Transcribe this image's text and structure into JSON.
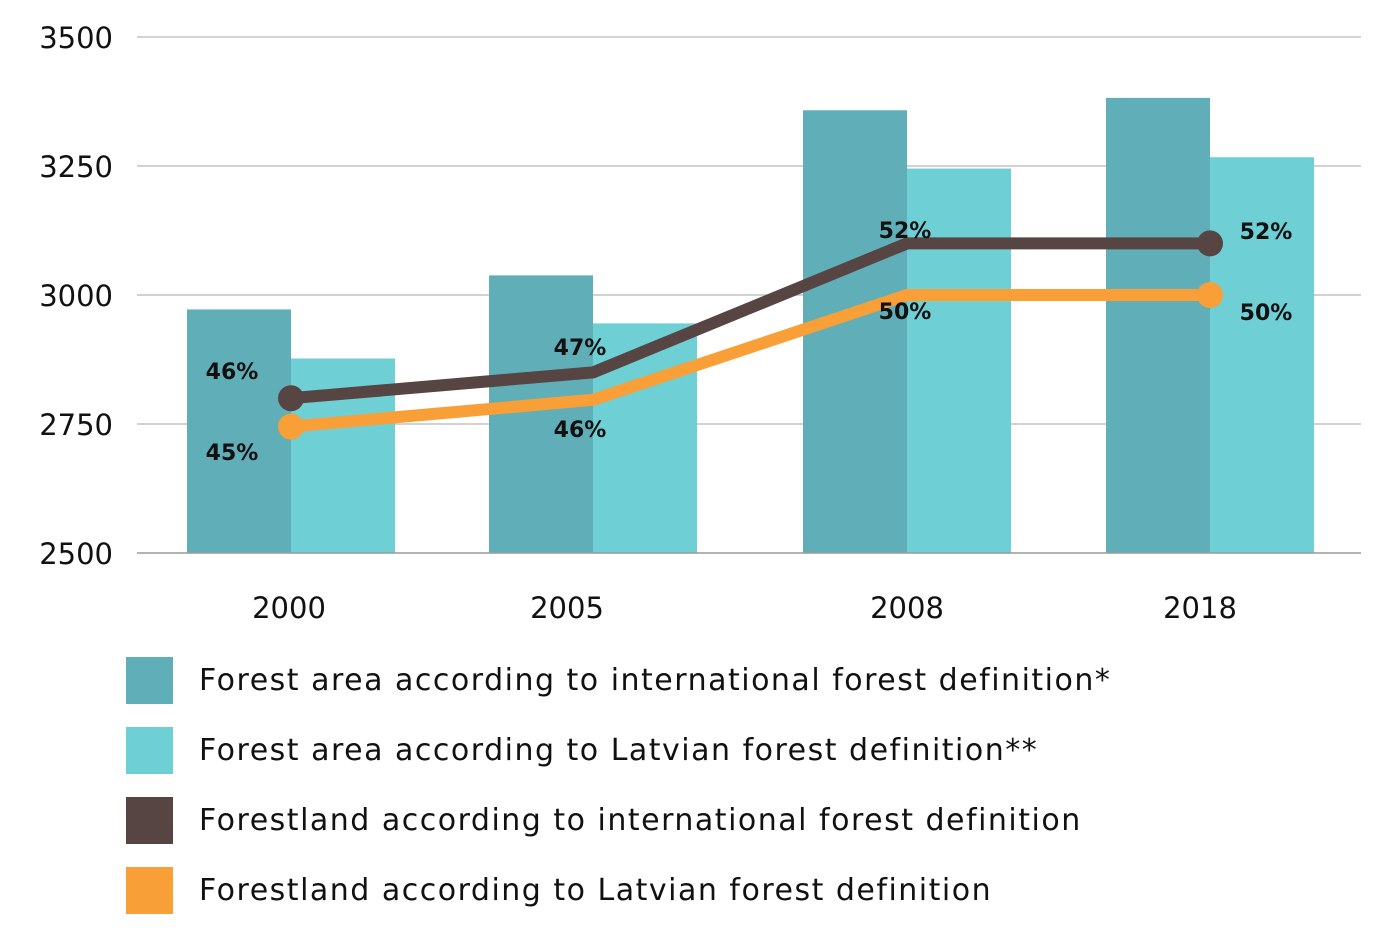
{
  "chart_data": {
    "type": "bar",
    "categories": [
      "2000",
      "2005",
      "2008",
      "2018"
    ],
    "ylim": [
      2500,
      3500
    ],
    "yticks": [
      2500,
      2750,
      3000,
      3250,
      3500
    ],
    "grid": true,
    "legend_position": "bottom",
    "bar_series": [
      {
        "name": "Forest area according to international forest definition*",
        "color": "#60aeb8",
        "values": [
          2972,
          3038,
          3358,
          3382
        ]
      },
      {
        "name": "Forest area according to Latvian forest definition**",
        "color": "#6ecfd5",
        "values": [
          2877,
          2945,
          3245,
          3267
        ]
      }
    ],
    "line_series": [
      {
        "name": "Forestland according to international forest definition",
        "color": "#574544",
        "values": [
          2800,
          2850,
          3100,
          3100
        ],
        "labels": [
          "46%",
          "47%",
          "52%",
          "52%"
        ]
      },
      {
        "name": "Forestland according to Latvian forest definition",
        "color": "#f99f38",
        "values": [
          2745,
          2797,
          3000,
          3000
        ],
        "labels": [
          "45%",
          "46%",
          "50%",
          "50%"
        ]
      }
    ]
  }
}
